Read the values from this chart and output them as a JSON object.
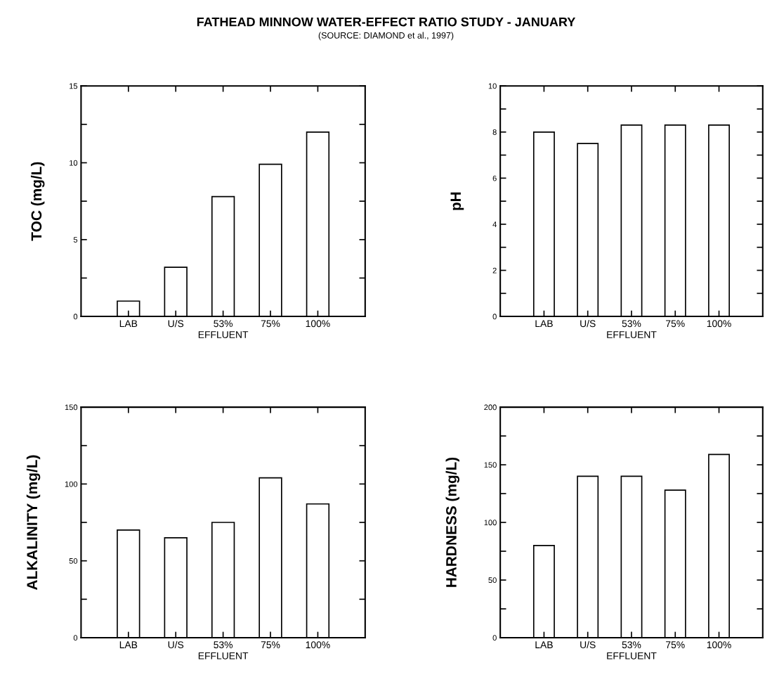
{
  "chart_data": [
    {
      "type": "bar",
      "title": "FATHEAD MINNOW WATER-EFFECT RATIO STUDY - JANUARY",
      "subtitle": "(SOURCE: DIAMOND et al., 1997)",
      "categories": [
        "LAB",
        "U/S",
        "53%",
        "75%",
        "100%"
      ],
      "values": [
        1.0,
        3.2,
        7.8,
        9.9,
        12
      ],
      "color": "#ffffff",
      "ylabel": "TOC (mg/L)",
      "xlabel": "EFFLUENT",
      "ylim": [
        0,
        15
      ],
      "yticks": [
        0,
        {
          "value": 2.5,
          "label": null
        },
        5,
        {
          "value": 7.5,
          "label": null
        },
        10,
        {
          "value": 12.5,
          "label": null
        },
        15
      ],
      "grid": false
    },
    {
      "type": "bar",
      "categories": [
        "LAB",
        "U/S",
        "53%",
        "75%",
        "100%"
      ],
      "values": [
        8.0,
        7.5,
        8.3,
        8.3,
        8.3
      ],
      "color": "#ffffff",
      "ylabel": "pH",
      "xlabel": "EFFLUENT",
      "ylim": [
        0,
        10
      ],
      "yticks": [
        0,
        {
          "value": 1,
          "label": null
        },
        2,
        {
          "value": 3,
          "label": null
        },
        4,
        {
          "value": 5,
          "label": null
        },
        6,
        {
          "value": 7,
          "label": null
        },
        8,
        {
          "value": 9,
          "label": null
        },
        10
      ],
      "grid": false
    },
    {
      "type": "bar",
      "categories": [
        "LAB",
        "U/S",
        "53%",
        "75%",
        "100%"
      ],
      "values": [
        70,
        65,
        75,
        104,
        87
      ],
      "color": "#ffffff",
      "ylabel": "ALKALINITY (mg/L)",
      "xlabel": "EFFLUENT",
      "ylim": [
        0,
        150
      ],
      "yticks": [
        0,
        {
          "value": 25,
          "label": null
        },
        50,
        {
          "value": 75,
          "label": null
        },
        100,
        {
          "value": 125,
          "label": null
        },
        150
      ],
      "grid": false
    },
    {
      "type": "bar",
      "categories": [
        "LAB",
        "U/S",
        "53%",
        "75%",
        "100%"
      ],
      "values": [
        80,
        140,
        140,
        128,
        159
      ],
      "color": "#ffffff",
      "ylabel": "HARDNESS (mg/L)",
      "xlabel": "EFFLUENT",
      "ylim": [
        0,
        200
      ],
      "yticks": [
        0,
        {
          "value": 25,
          "label": null
        },
        50,
        {
          "value": 75,
          "label": null
        },
        100,
        {
          "value": 125,
          "label": null
        },
        150,
        {
          "value": 175,
          "label": null
        },
        200
      ],
      "grid": false
    }
  ]
}
